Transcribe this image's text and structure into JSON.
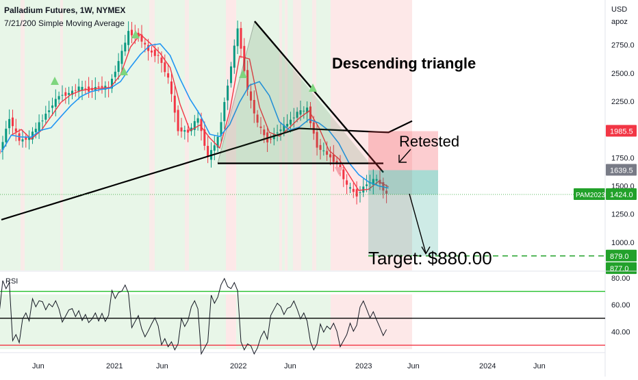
{
  "header": {
    "title": "Palladium Futures, 1W, NYMEX",
    "subtitle": "7/21/200 Simple Moving Average"
  },
  "currency": {
    "code": "USD",
    "sub": "apoz"
  },
  "annotations": {
    "pattern": "Descending triangle",
    "retest": "Retested",
    "target": "Target: $880.00"
  },
  "colors": {
    "bull_candle": "#089981",
    "bear_candle": "#f23645",
    "bg_green": "#e8f6e8",
    "bg_red": "#fde8e8",
    "ma7": "#f23645",
    "ma21": "#2196f3",
    "ma200": "#000000",
    "rsi_line": "#131722",
    "rsi_upper": "#22c02a",
    "rsi_lower": "#f23645",
    "target_line": "#22a12a"
  },
  "price_badges": [
    {
      "label": "1985.5",
      "color": "#f23645"
    },
    {
      "label": "1639.5",
      "color": "#787b86"
    },
    {
      "label": "1424.0",
      "color": "#22a12a",
      "tag": "PAM2023"
    },
    {
      "label": "879.0",
      "color": "#22a12a"
    },
    {
      "label": "877.0",
      "color": "#22a12a"
    }
  ],
  "rsi_panel": {
    "label": "RSI",
    "ticks": [
      "80.00",
      "60.00",
      "40.00"
    ]
  },
  "chart_data": [
    {
      "type": "line",
      "title": "Palladium Futures, 1W, NYMEX",
      "series": [
        {
          "name": "",
          "note": "weekly candlestick price series approximated by closes",
          "points": [
            [
              "2020-03",
              1800
            ],
            [
              "2020-04",
              2100
            ],
            [
              "2020-05",
              1900
            ],
            [
              "2020-06",
              1930
            ],
            [
              "2020-07",
              2050
            ],
            [
              "2020-08",
              2180
            ],
            [
              "2020-09",
              2300
            ],
            [
              "2020-10",
              2320
            ],
            [
              "2020-11",
              2370
            ],
            [
              "2020-12",
              2350
            ],
            [
              "2021-01",
              2380
            ],
            [
              "2021-02",
              2370
            ],
            [
              "2021-03",
              2600
            ],
            [
              "2021-04",
              2860
            ],
            [
              "2021-05",
              2830
            ],
            [
              "2021-06",
              2700
            ],
            [
              "2021-07",
              2650
            ],
            [
              "2021-08",
              2450
            ],
            [
              "2021-09",
              2000
            ],
            [
              "2021-10",
              1980
            ],
            [
              "2021-11",
              2100
            ],
            [
              "2021-12",
              1750
            ],
            [
              "2022-01",
              1920
            ],
            [
              "2022-02",
              2400
            ],
            [
              "2022-03",
              2900
            ],
            [
              "2022-04",
              2350
            ],
            [
              "2022-05",
              2050
            ],
            [
              "2022-06",
              1900
            ],
            [
              "2022-07",
              1980
            ],
            [
              "2022-08",
              2050
            ],
            [
              "2022-09",
              2150
            ],
            [
              "2022-10",
              2180
            ],
            [
              "2022-11",
              1850
            ],
            [
              "2022-12",
              1780
            ],
            [
              "2023-01",
              1700
            ],
            [
              "2023-02",
              1500
            ],
            [
              "2023-03",
              1420
            ],
            [
              "2023-04",
              1520
            ],
            [
              "2023-05",
              1560
            ],
            [
              "2023-06",
              1424
            ]
          ]
        }
      ],
      "y_ticks": [
        2750,
        2500,
        2250,
        2000,
        1750,
        1500,
        1250,
        1000
      ],
      "x_ticks": [
        "Jun",
        "2021",
        "Jun",
        "2022",
        "Jun",
        "2023",
        "Jun",
        "2024",
        "Jun"
      ],
      "ylim": [
        750,
        3100
      ],
      "annotations": [
        "Descending triangle",
        "Retested",
        "Target: $880.00"
      ]
    },
    {
      "type": "line",
      "title": "RSI",
      "y_ticks": [
        80,
        60,
        40
      ],
      "ylim": [
        26,
        84
      ],
      "levels": [
        70,
        50,
        30
      ]
    }
  ]
}
